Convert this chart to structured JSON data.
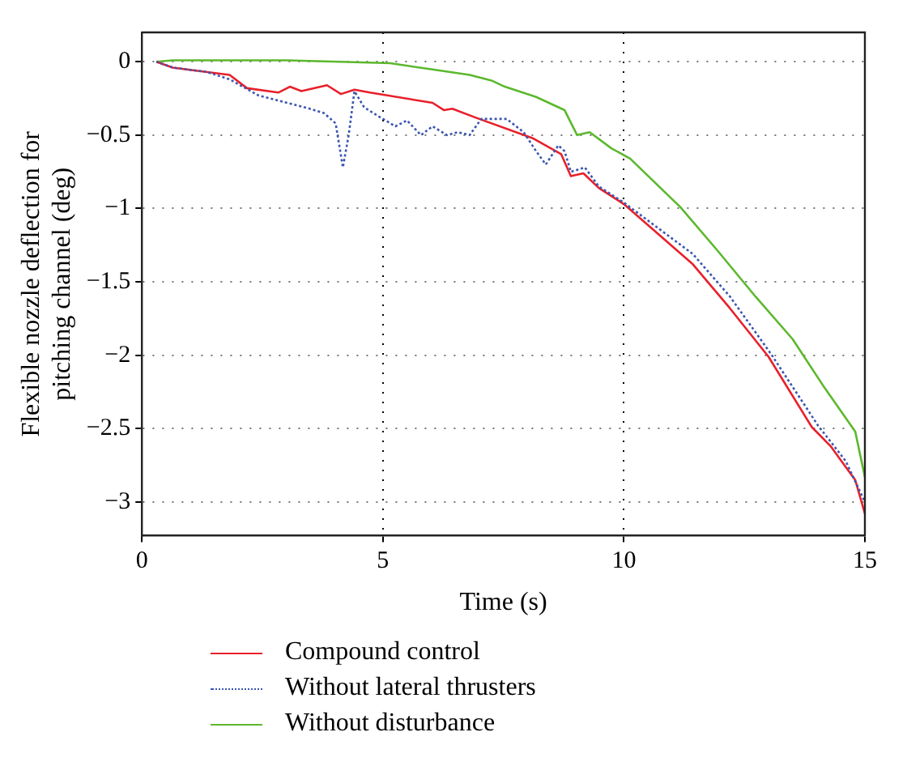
{
  "chart_data": {
    "type": "line",
    "xlabel": "Time (s)",
    "ylabel": "Flexible nozzle deflection for pitching channel (deg)",
    "xlim": [
      0,
      15
    ],
    "ylim": [
      -3.23,
      0.2
    ],
    "xticks": [
      0,
      5,
      10,
      15
    ],
    "yticks": [
      {
        "value": 0,
        "label": "0"
      },
      {
        "value": -0.5,
        "label": "−0.5"
      },
      {
        "value": -1,
        "label": "−1"
      },
      {
        "value": -1.5,
        "label": "−1.5"
      },
      {
        "value": -2,
        "label": "−2"
      },
      {
        "value": -2.5,
        "label": "−2.5"
      },
      {
        "value": -3,
        "label": "−3"
      }
    ],
    "grid": true,
    "legend": "bottom left",
    "marker": "none",
    "series": [
      {
        "name": "Compound control",
        "color": "#e8202a",
        "line_style": "solid",
        "x": [
          0.3,
          0.64,
          1.82,
          2.18,
          2.83,
          3.07,
          3.31,
          3.84,
          4.13,
          4.41,
          4.73,
          6.03,
          6.27,
          6.44,
          6.92,
          8.1,
          8.7,
          8.9,
          9.16,
          9.48,
          10,
          11.43,
          12.2,
          13,
          13.9,
          14.29,
          14.6,
          14.8,
          15
        ],
        "values": [
          0,
          -0.04,
          -0.09,
          -0.18,
          -0.21,
          -0.17,
          -0.2,
          -0.16,
          -0.22,
          -0.19,
          -0.21,
          -0.28,
          -0.33,
          -0.32,
          -0.38,
          -0.52,
          -0.63,
          -0.78,
          -0.76,
          -0.86,
          -0.97,
          -1.38,
          -1.68,
          -2.01,
          -2.49,
          -2.62,
          -2.76,
          -2.85,
          -3.08
        ]
      },
      {
        "name": "Without lateral thrusters",
        "color": "#3b55b0",
        "line_style": "dotted",
        "x": [
          0.3,
          0.64,
          1.35,
          1.82,
          2.42,
          3.01,
          3.48,
          3.78,
          4.02,
          4.17,
          4.29,
          4.41,
          4.61,
          4.9,
          5.26,
          5.5,
          5.79,
          6.03,
          6.33,
          6.56,
          6.8,
          7.04,
          7.57,
          7.92,
          8.18,
          8.38,
          8.64,
          8.77,
          8.9,
          9.19,
          9.48,
          10,
          11.43,
          12.2,
          13.05,
          14.03,
          14.6,
          15
        ],
        "values": [
          0,
          -0.04,
          -0.07,
          -0.12,
          -0.23,
          -0.28,
          -0.32,
          -0.35,
          -0.42,
          -0.72,
          -0.5,
          -0.2,
          -0.31,
          -0.37,
          -0.44,
          -0.4,
          -0.5,
          -0.44,
          -0.5,
          -0.48,
          -0.5,
          -0.39,
          -0.39,
          -0.48,
          -0.61,
          -0.7,
          -0.57,
          -0.61,
          -0.75,
          -0.72,
          -0.85,
          -0.96,
          -1.31,
          -1.6,
          -1.99,
          -2.48,
          -2.72,
          -3.0
        ]
      },
      {
        "name": "Without disturbance",
        "color": "#5cb82e",
        "line_style": "solid",
        "x": [
          0.3,
          0.64,
          3.01,
          5.15,
          5.97,
          6.8,
          7.27,
          7.53,
          8.18,
          8.77,
          9.03,
          9.29,
          9.74,
          10.13,
          11.17,
          11.95,
          12.73,
          13.5,
          14.16,
          14.8,
          15
        ],
        "values": [
          0,
          0.01,
          0.01,
          -0.01,
          -0.05,
          -0.09,
          -0.13,
          -0.17,
          -0.24,
          -0.33,
          -0.5,
          -0.48,
          -0.59,
          -0.66,
          -0.99,
          -1.29,
          -1.6,
          -1.89,
          -2.22,
          -2.52,
          -2.83
        ]
      }
    ]
  }
}
